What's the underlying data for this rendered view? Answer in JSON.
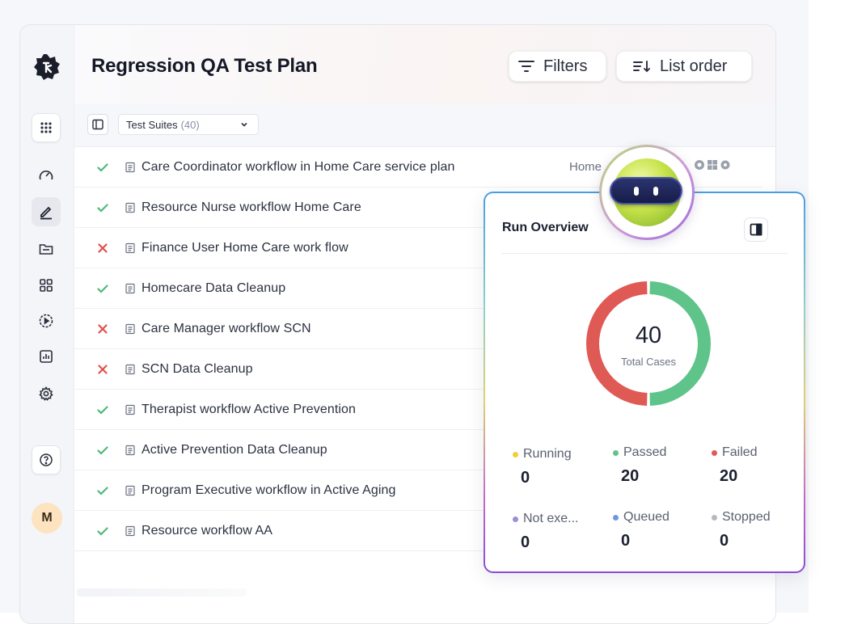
{
  "header": {
    "title": "Regression QA Test Plan",
    "filters_label": "Filters",
    "list_order_label": "List order"
  },
  "toolbar": {
    "suite_select": {
      "label": "Test Suites",
      "count": "(40)"
    }
  },
  "sidebar": {
    "items": [
      {
        "icon": "apps-grid-icon"
      },
      {
        "icon": "dashboard-gauge-icon"
      },
      {
        "icon": "edit-pen-icon",
        "active": true
      },
      {
        "icon": "folder-icon"
      },
      {
        "icon": "modules-grid-icon"
      },
      {
        "icon": "run-play-icon"
      },
      {
        "icon": "reports-chart-icon"
      },
      {
        "icon": "settings-gear-icon"
      },
      {
        "icon": "help-icon"
      }
    ],
    "avatar_initial": "M"
  },
  "rows": [
    {
      "name": "Care Coordinator workflow in Home Care service plan",
      "status": "passed",
      "tag": "Home"
    },
    {
      "name": "Resource Nurse workflow Home Care",
      "status": "passed"
    },
    {
      "name": "Finance User Home Care work flow",
      "status": "failed"
    },
    {
      "name": "Homecare Data Cleanup",
      "status": "passed"
    },
    {
      "name": "Care Manager workflow SCN",
      "status": "failed"
    },
    {
      "name": "SCN Data Cleanup",
      "status": "failed"
    },
    {
      "name": "Therapist workflow Active Prevention",
      "status": "passed"
    },
    {
      "name": "Active Prevention Data Cleanup",
      "status": "passed"
    },
    {
      "name": "Program Executive workflow in Active Aging",
      "status": "passed"
    },
    {
      "name": "Resource workflow AA",
      "status": "passed"
    }
  ],
  "overview": {
    "title": "Run Overview",
    "total": "40",
    "total_label": "Total Cases",
    "passed_count": 20,
    "failed_count": 20,
    "stats": [
      {
        "label": "Running",
        "value": "0",
        "color": "#f2cf3a"
      },
      {
        "label": "Passed",
        "value": "20",
        "color": "#5ec48a"
      },
      {
        "label": "Failed",
        "value": "20",
        "color": "#e05a55"
      },
      {
        "label": "Not exe...",
        "value": "0",
        "color": "#9a8fd8"
      },
      {
        "label": "Queued",
        "value": "0",
        "color": "#6f96e2"
      },
      {
        "label": "Stopped",
        "value": "0",
        "color": "#b3b8c2"
      }
    ]
  },
  "colors": {
    "passed": "#4fb87a",
    "failed": "#e0504c",
    "accent": "#1b2030"
  }
}
